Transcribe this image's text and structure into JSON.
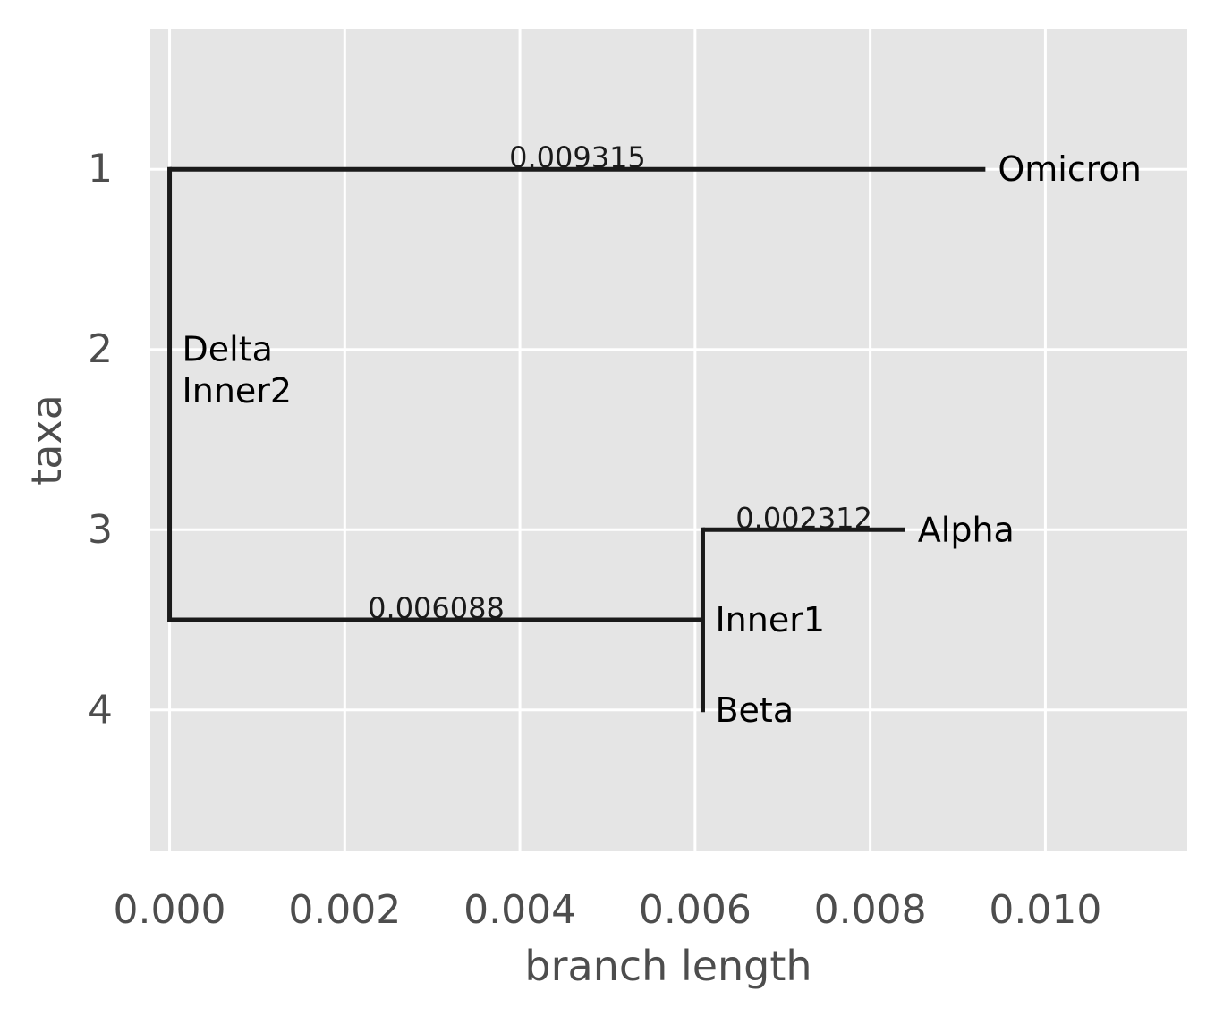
{
  "chart_data": {
    "type": "tree",
    "xlabel": "branch length",
    "ylabel": "taxa",
    "xlim": [
      -0.00022,
      0.01162
    ],
    "ylim": [
      0.22,
      4.78
    ],
    "y_inverted": true,
    "grid": true,
    "xticks": [
      0.0,
      0.002,
      0.004,
      0.006,
      0.008,
      0.01
    ],
    "xtick_labels": [
      "0.000",
      "0.002",
      "0.004",
      "0.006",
      "0.008",
      "0.010"
    ],
    "yticks": [
      1,
      2,
      3,
      4
    ],
    "ytick_labels": [
      "1",
      "2",
      "3",
      "4"
    ],
    "branches": [
      {
        "from": "Inner2",
        "to": "Omicron",
        "x0": 0.0,
        "x1": 0.009315,
        "y": 1,
        "label": "0.009315"
      },
      {
        "from": "Inner2",
        "to": "Inner1",
        "x0": 0.0,
        "x1": 0.006088,
        "y": 3.5,
        "label": "0.006088"
      },
      {
        "from": "Inner1",
        "to": "Alpha",
        "x0": 0.006088,
        "x1": 0.0084,
        "y": 3,
        "label": "0.002312"
      },
      {
        "from": "Inner1",
        "to": "Beta",
        "x0": 0.006088,
        "x1": 0.006088,
        "y": 4,
        "label": ""
      }
    ],
    "connectors": [
      {
        "node": "Inner2",
        "x": 0.0,
        "y0": 1,
        "y1": 3.5
      },
      {
        "node": "Inner1",
        "x": 0.006088,
        "y0": 3,
        "y1": 4
      }
    ],
    "taxa_labels": [
      {
        "text": "Omicron",
        "x": 0.009315,
        "y": 1
      },
      {
        "text": "Delta",
        "x": 0.0,
        "y": 2
      },
      {
        "text": "Inner2",
        "x": 0.0,
        "y": 2.23
      },
      {
        "text": "Alpha",
        "x": 0.0084,
        "y": 3
      },
      {
        "text": "Inner1",
        "x": 0.006088,
        "y": 3.5
      },
      {
        "text": "Beta",
        "x": 0.006088,
        "y": 4
      }
    ],
    "colors": {
      "panel": "#e5e5e5",
      "grid": "#ffffff",
      "branch": "#1a1a1a",
      "tick_text": "#4d4d4d"
    }
  }
}
